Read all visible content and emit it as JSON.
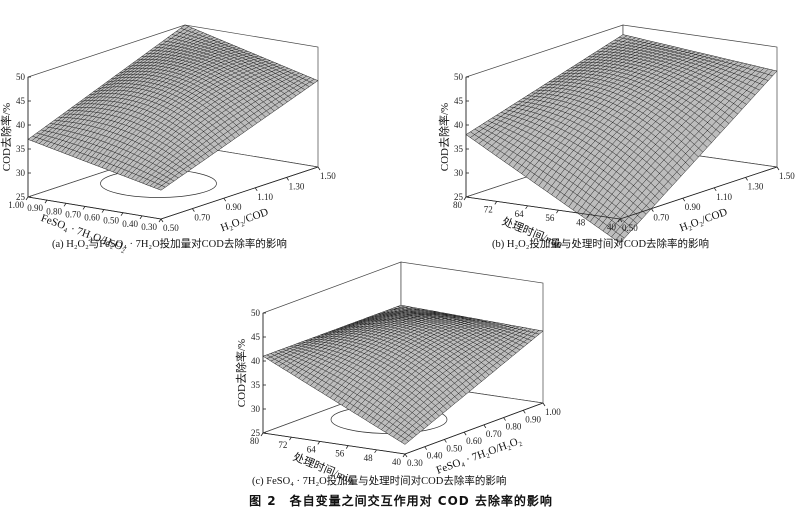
{
  "figure_title": "图 2　各自变量之间交互作用对 COD 去除率的影响",
  "chart_data": [
    {
      "type": "surface3d",
      "caption": "(a) H₂O₂与FeSO₄ · 7H₂O投加量对COD去除率的影响",
      "zlabel": "COD去除率/%",
      "zlim": [
        25,
        50
      ],
      "z_ticks": [
        "25",
        "30",
        "35",
        "40",
        "45",
        "50"
      ],
      "xlabel": "FeSO₄ · 7H₂O/H₂O₂",
      "x_ticks": [
        "1.00",
        "0.90",
        "0.80",
        "0.70",
        "0.60",
        "0.50",
        "0.40",
        "0.30"
      ],
      "ylabel": "H₂O₂/COD",
      "y_ticks": [
        "0.50",
        "0.70",
        "0.90",
        "1.10",
        "1.30",
        "1.50"
      ],
      "corners_z": {
        "back": 50,
        "left": 37,
        "right": 43,
        "front": 31
      },
      "peak_z": 50
    },
    {
      "type": "surface3d",
      "caption": "(b) H₂O₂投加量与处理时间对COD去除率的影响",
      "zlabel": "COD去除率/%",
      "zlim": [
        25,
        50
      ],
      "z_ticks": [
        "25",
        "30",
        "35",
        "40",
        "45",
        "50"
      ],
      "xlabel": "处理时间/min",
      "x_ticks": [
        "80",
        "72",
        "64",
        "56",
        "48",
        "40"
      ],
      "ylabel": "H₂O₂/COD",
      "y_ticks": [
        "0.50",
        "0.70",
        "0.90",
        "1.10",
        "1.30",
        "1.50"
      ],
      "corners_z": {
        "back": 48,
        "left": 38,
        "right": 45,
        "front": 20
      },
      "peak_z": 50
    },
    {
      "type": "surface3d",
      "caption": "(c) FeSO₄ · 7H₂O投加量与处理时间对COD去除率的影响",
      "zlabel": "COD去除率/%",
      "zlim": [
        25,
        50
      ],
      "z_ticks": [
        "25",
        "30",
        "35",
        "40",
        "45",
        "50"
      ],
      "xlabel": "处理时间/min",
      "x_ticks": [
        "80",
        "72",
        "64",
        "56",
        "48",
        "40"
      ],
      "ylabel": "FeSO₄ · 7H₂O/H₂O₂",
      "y_ticks": [
        "0.30",
        "0.40",
        "0.50",
        "0.60",
        "0.70",
        "0.80",
        "0.90",
        "1.00"
      ],
      "corners_z": {
        "back": 41,
        "left": 41,
        "right": 40,
        "front": 27
      },
      "peak_z": 50
    }
  ]
}
